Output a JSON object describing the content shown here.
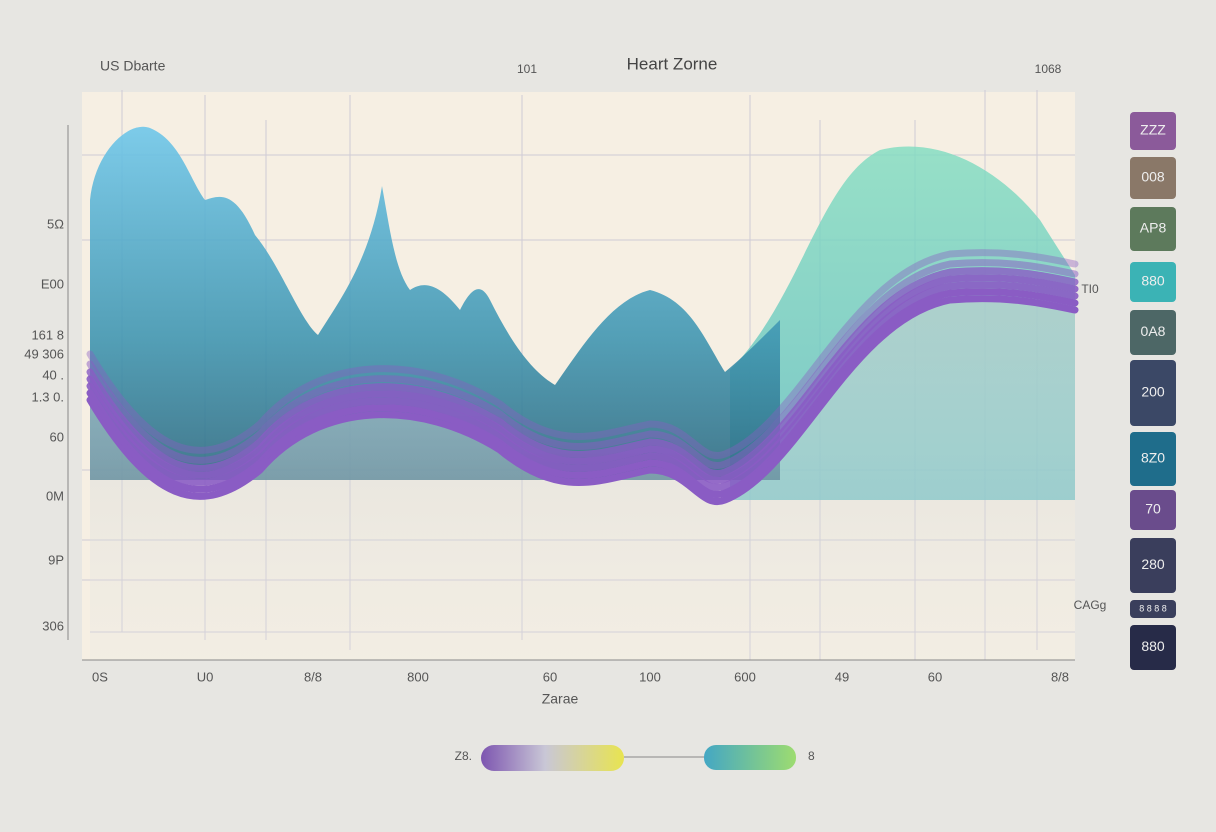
{
  "header": {
    "left": "US Dbarte",
    "center": "101",
    "title": "Heart Zorne",
    "right": "1068"
  },
  "y_labels": [
    "5Ω",
    "E00",
    "161 8",
    "49 306",
    "40 .",
    "1.3 0.",
    "60",
    "0M",
    "9P",
    "306"
  ],
  "right_labels": [
    "TI0",
    "CAGg"
  ],
  "x_labels": [
    "0S",
    "U0",
    "8/8",
    "800",
    "60",
    "100",
    "600",
    "49",
    "60",
    "8/8"
  ],
  "x_title": "Zarae",
  "badges": [
    {
      "label": "ZZZ",
      "color": "#8b5a9a"
    },
    {
      "label": "008",
      "color": "#8a7868"
    },
    {
      "label": "AP8",
      "color": "#5d7a5c"
    },
    {
      "label": "880",
      "color": "#3bb3b5"
    },
    {
      "label": "0A8",
      "color": "#4d6766"
    },
    {
      "label": "200",
      "color": "#3b4866"
    },
    {
      "label": "8Z0",
      "color": "#1f6d8b"
    },
    {
      "label": "70",
      "color": "#6a4c8c"
    },
    {
      "label": "280",
      "color": "#3a3e5c"
    },
    {
      "label": "8 8 8 8",
      "color": "#3a3f5c"
    },
    {
      "label": "880",
      "color": "#272b48"
    }
  ],
  "legend": {
    "left": "Z8.",
    "right": "8"
  }
}
